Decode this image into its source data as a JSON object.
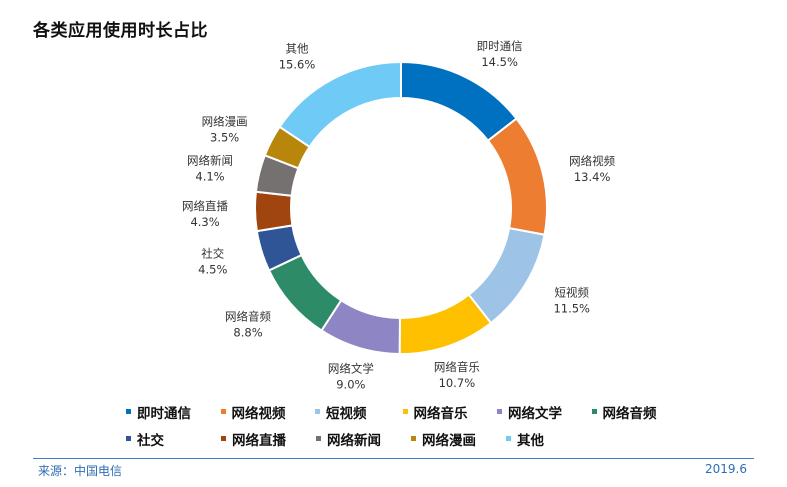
{
  "page": {
    "title": "各类应用使用时长占比",
    "source": "来源：中国电信",
    "date": "2019.6"
  },
  "chart_data": {
    "type": "pie",
    "title": "各类应用使用时长占比",
    "slices": [
      {
        "name": "即时通信",
        "value": 14.5,
        "label": "14.5%",
        "color": "#0070c0"
      },
      {
        "name": "网络视频",
        "value": 13.4,
        "label": "13.4%",
        "color": "#ed7d31"
      },
      {
        "name": "短视频",
        "value": 11.5,
        "label": "11.5%",
        "color": "#9dc3e6"
      },
      {
        "name": "网络音乐",
        "value": 10.7,
        "label": "10.7%",
        "color": "#ffc000"
      },
      {
        "name": "网络文学",
        "value": 9.0,
        "label": "9.0%",
        "color": "#8e86c4"
      },
      {
        "name": "网络音频",
        "value": 8.8,
        "label": "8.8%",
        "color": "#2e8b67"
      },
      {
        "name": "社交",
        "value": 4.5,
        "label": "4.5%",
        "color": "#2f5597"
      },
      {
        "name": "网络直播",
        "value": 4.3,
        "label": "4.3%",
        "color": "#a0450f"
      },
      {
        "name": "网络新闻",
        "value": 4.1,
        "label": "4.1%",
        "color": "#767171"
      },
      {
        "name": "网络漫画",
        "value": 3.5,
        "label": "3.5%",
        "color": "#b8860b"
      },
      {
        "name": "其他",
        "value": 15.6,
        "label": "15.6%",
        "color": "#6fcbf5"
      }
    ],
    "legend": {
      "placement": "bottom",
      "rows": [
        [
          "即时通信",
          "网络视频",
          "短视频",
          "网络音乐",
          "网络文学",
          "网络音频"
        ],
        [
          "社交",
          "网络直播",
          "网络新闻",
          "网络漫画",
          "其他"
        ]
      ]
    }
  }
}
